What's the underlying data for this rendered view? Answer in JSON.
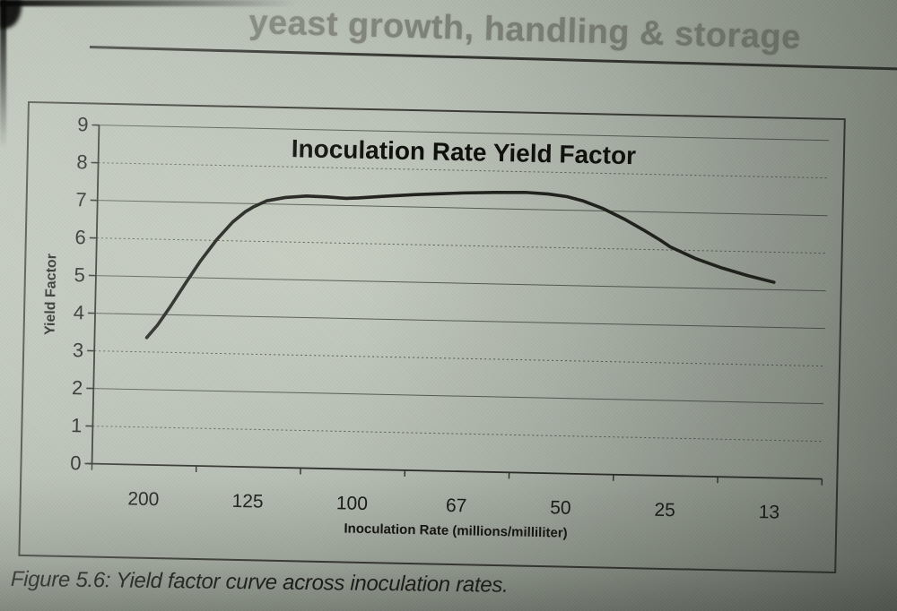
{
  "page": {
    "header_title": "yeast growth, handling & storage",
    "figure_caption": "Figure 5.6: Yield factor curve across inoculation rates."
  },
  "chart_data": {
    "type": "line",
    "title": "Inoculation Rate Yield Factor",
    "xlabel": "Inoculation Rate (millions/milliliter)",
    "ylabel": "Yield Factor",
    "categories": [
      "200",
      "125",
      "100",
      "67",
      "50",
      "25",
      "13"
    ],
    "values": [
      3.4,
      6.9,
      7.2,
      7.4,
      7.4,
      6.1,
      5.2
    ],
    "ylim": [
      0,
      9
    ],
    "yticks": [
      0,
      1,
      2,
      3,
      4,
      5,
      6,
      7,
      8,
      9
    ],
    "grid": "horizontal",
    "legend": "none",
    "line_color": "#20201c",
    "curve_points": [
      [
        0,
        3.38
      ],
      [
        0.1,
        3.72
      ],
      [
        0.22,
        4.22
      ],
      [
        0.35,
        4.8
      ],
      [
        0.5,
        5.45
      ],
      [
        0.65,
        6.02
      ],
      [
        0.8,
        6.5
      ],
      [
        0.92,
        6.78
      ],
      [
        1.0,
        6.92
      ],
      [
        1.12,
        7.08
      ],
      [
        1.3,
        7.18
      ],
      [
        1.5,
        7.23
      ],
      [
        1.7,
        7.22
      ],
      [
        1.88,
        7.19
      ],
      [
        2.0,
        7.21
      ],
      [
        2.25,
        7.27
      ],
      [
        2.55,
        7.33
      ],
      [
        2.8,
        7.37
      ],
      [
        3.0,
        7.4
      ],
      [
        3.3,
        7.43
      ],
      [
        3.6,
        7.45
      ],
      [
        3.82,
        7.42
      ],
      [
        4.0,
        7.36
      ],
      [
        4.15,
        7.26
      ],
      [
        4.35,
        7.06
      ],
      [
        4.55,
        6.8
      ],
      [
        4.75,
        6.5
      ],
      [
        4.9,
        6.26
      ],
      [
        5.0,
        6.08
      ],
      [
        5.25,
        5.78
      ],
      [
        5.5,
        5.55
      ],
      [
        5.75,
        5.36
      ],
      [
        6.0,
        5.2
      ]
    ]
  },
  "style": {
    "paper_color": "#b6bdb2",
    "ink_color": "#191915",
    "grid_color": "#585d54",
    "axis_color": "#2c2d28",
    "header_color": "#7e8277"
  }
}
